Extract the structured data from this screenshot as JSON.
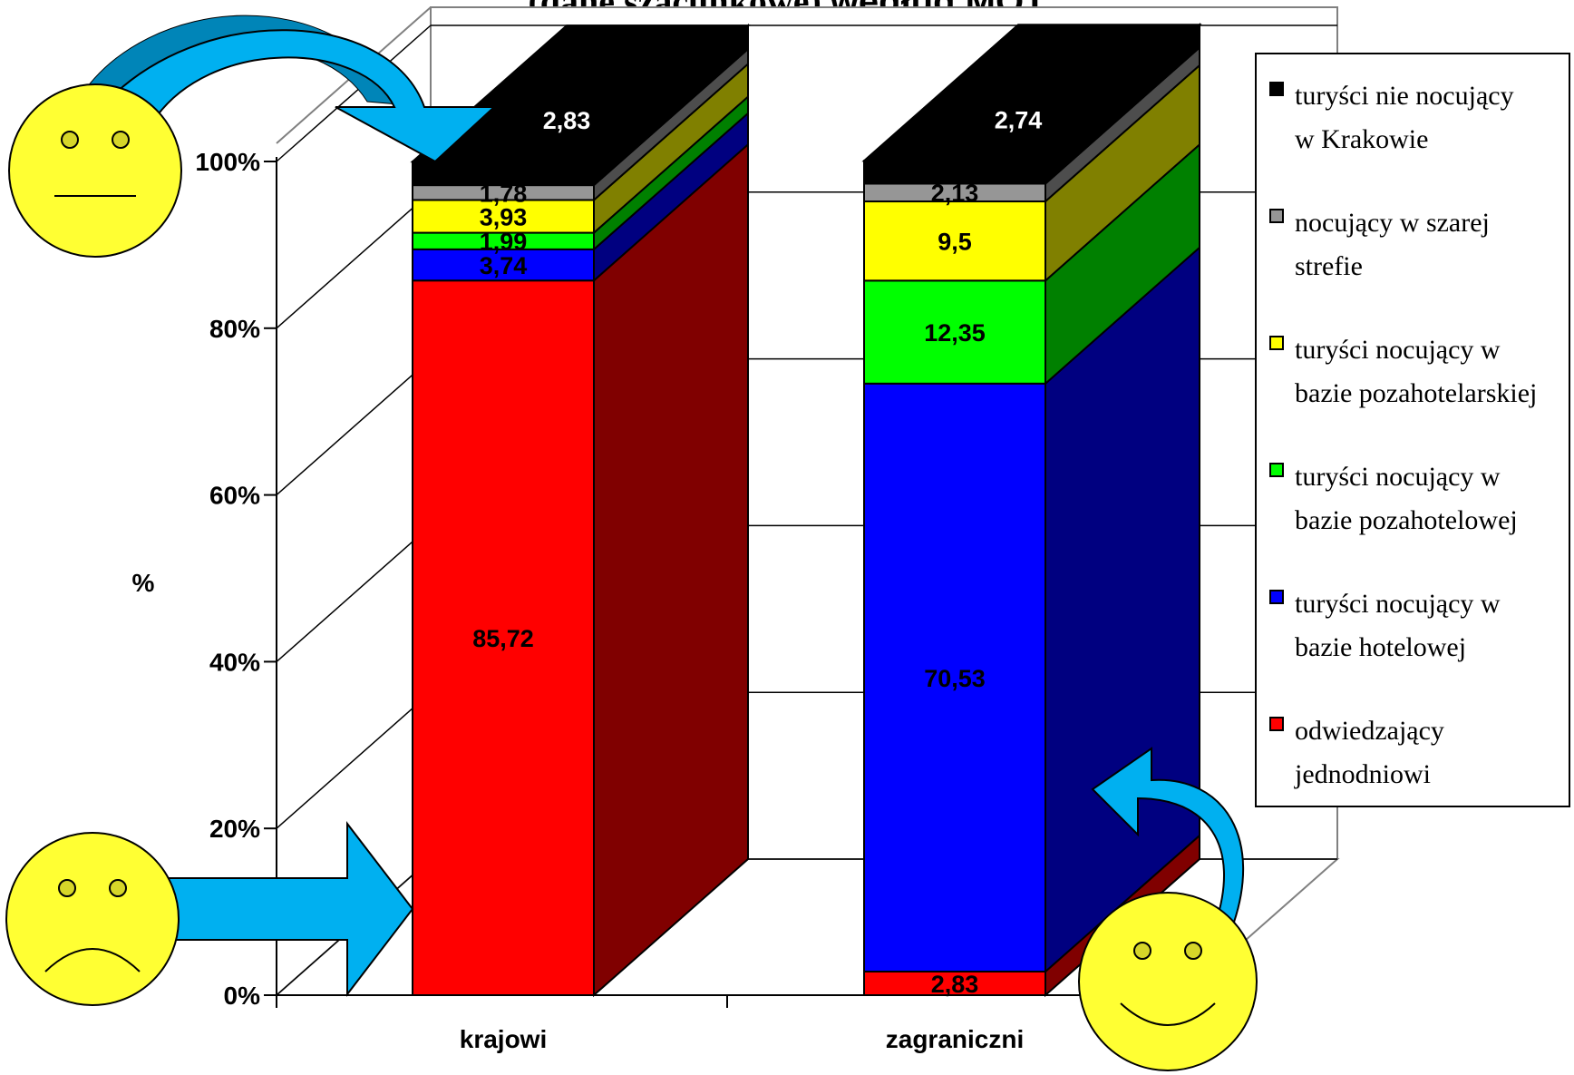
{
  "title": {
    "part1": "(dane szacunkowe)",
    "part2": "według MOT"
  },
  "chart_data": {
    "type": "bar",
    "stacked": true,
    "percent": true,
    "three_d": true,
    "categories": [
      "krajowi",
      "zagraniczni"
    ],
    "ylabel": "%",
    "ylim": [
      0,
      100
    ],
    "yticks": [
      "0%",
      "20%",
      "40%",
      "60%",
      "80%",
      "100%"
    ],
    "grid": true,
    "legend_position": "right",
    "series": [
      {
        "name": "odwiedzający jednodniowi",
        "color": "#ff0000",
        "side_color": "#800000",
        "values": [
          85.72,
          2.83
        ],
        "labels": [
          "85,72",
          "2,83"
        ]
      },
      {
        "name": "turyści nocujący w bazie hotelowej",
        "color": "#0000ff",
        "side_color": "#000080",
        "values": [
          3.74,
          70.53
        ],
        "labels": [
          "3,74",
          "70,53"
        ]
      },
      {
        "name": "turyści nocujący w bazie pozahotelowej",
        "color": "#00ff00",
        "side_color": "#008000",
        "values": [
          1.99,
          12.35
        ],
        "labels": [
          "1,99",
          "12,35"
        ]
      },
      {
        "name": "turyści nocujący w bazie pozahotelarskiej",
        "color": "#ffff00",
        "side_color": "#808000",
        "values": [
          3.93,
          9.5
        ],
        "labels": [
          "3,93",
          "9,5"
        ]
      },
      {
        "name": "nocujący w szarej strefie",
        "color": "#969696",
        "side_color": "#4d4d4d",
        "values": [
          1.78,
          2.13
        ],
        "labels": [
          "1,78",
          "2,13"
        ]
      },
      {
        "name": "turyści nie nocujący w Krakowie",
        "color": "#000000",
        "side_color": "#000000",
        "values": [
          2.83,
          2.74
        ],
        "labels": [
          "2,83",
          "2,74"
        ]
      }
    ]
  },
  "legend": {
    "items": [
      {
        "lines": [
          "turyści nie nocujący",
          "w Krakowie"
        ],
        "color": "#000000"
      },
      {
        "lines": [
          "nocujący w szarej",
          "strefie"
        ],
        "color": "#969696"
      },
      {
        "lines": [
          "turyści nocujący w",
          "bazie pozahotelarskiej"
        ],
        "color": "#ffff00"
      },
      {
        "lines": [
          "turyści nocujący w",
          "bazie pozahotelowej"
        ],
        "color": "#00ff00"
      },
      {
        "lines": [
          "turyści nocujący w",
          "bazie hotelowej"
        ],
        "color": "#0000ff"
      },
      {
        "lines": [
          "odwiedzający",
          "jednodniowi"
        ],
        "color": "#ff0000"
      }
    ]
  },
  "decorations": {
    "arrow_color": "#00b0f0",
    "arrow_side_color": "#0085b8",
    "face_color": "#ffff33",
    "faces": [
      "neutral-face-icon",
      "sad-face-icon",
      "happy-face-icon"
    ]
  }
}
